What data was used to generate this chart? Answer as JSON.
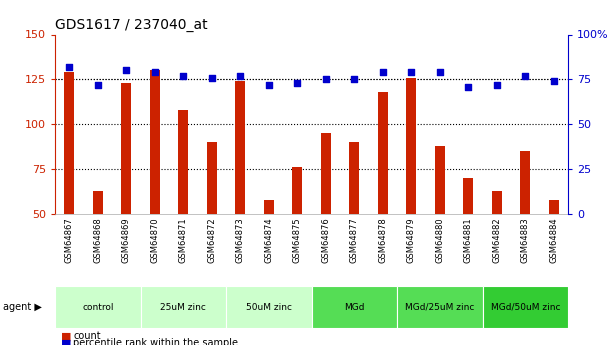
{
  "title": "GDS1617 / 237040_at",
  "samples": [
    "GSM64867",
    "GSM64868",
    "GSM64869",
    "GSM64870",
    "GSM64871",
    "GSM64872",
    "GSM64873",
    "GSM64874",
    "GSM64875",
    "GSM64876",
    "GSM64877",
    "GSM64878",
    "GSM64879",
    "GSM64880",
    "GSM64881",
    "GSM64882",
    "GSM64883",
    "GSM64884"
  ],
  "counts": [
    129,
    63,
    123,
    130,
    108,
    90,
    124,
    58,
    76,
    95,
    90,
    118,
    126,
    88,
    70,
    63,
    85,
    58
  ],
  "percentiles": [
    82,
    72,
    80,
    79,
    77,
    76,
    77,
    72,
    73,
    75,
    75,
    79,
    79,
    79,
    71,
    72,
    77,
    74
  ],
  "ylim_left": [
    50,
    150
  ],
  "ylim_right": [
    0,
    100
  ],
  "yticks_left": [
    50,
    75,
    100,
    125,
    150
  ],
  "yticks_right": [
    0,
    25,
    50,
    75,
    100
  ],
  "ytick_labels_right": [
    "0",
    "25",
    "50",
    "75",
    "100%"
  ],
  "groups": [
    {
      "label": "control",
      "start": 0,
      "end": 3,
      "color": "#ccffcc"
    },
    {
      "label": "25uM zinc",
      "start": 3,
      "end": 6,
      "color": "#ccffcc"
    },
    {
      "label": "50uM zinc",
      "start": 6,
      "end": 9,
      "color": "#ccffcc"
    },
    {
      "label": "MGd",
      "start": 9,
      "end": 12,
      "color": "#55dd55"
    },
    {
      "label": "MGd/25uM zinc",
      "start": 12,
      "end": 15,
      "color": "#55dd55"
    },
    {
      "label": "MGd/50uM zinc",
      "start": 15,
      "end": 18,
      "color": "#33cc33"
    }
  ],
  "bar_color": "#cc2200",
  "dot_color": "#0000cc",
  "bg_color": "#ffffff",
  "xtick_bg_color": "#cccccc",
  "grid_color": "#000000",
  "left_tick_color": "#cc2200",
  "right_tick_color": "#0000cc",
  "legend_count_color": "#cc2200",
  "legend_pct_color": "#0000cc",
  "bar_width": 0.35
}
